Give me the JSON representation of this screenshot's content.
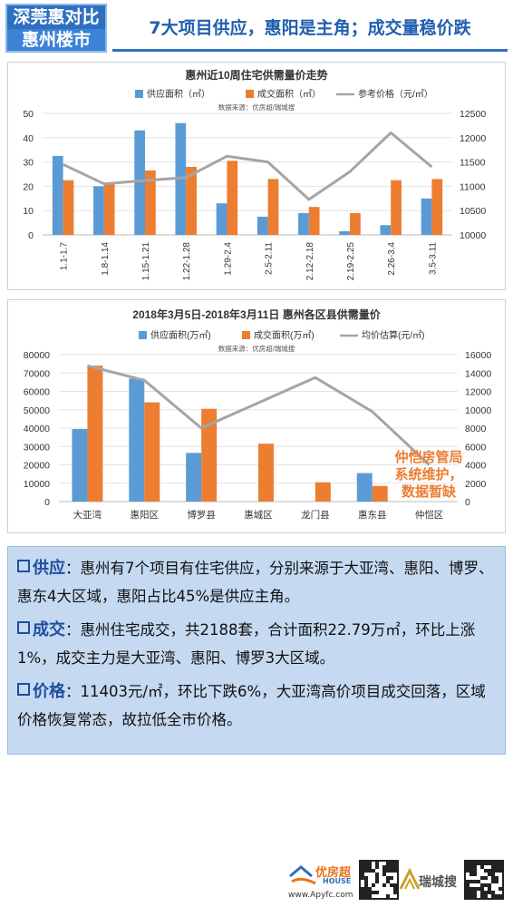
{
  "header": {
    "badge_line1": "深莞惠对比",
    "badge_line2": "惠州楼市",
    "headline": "7大项目供应，惠阳是主角；成交量稳价跌"
  },
  "colors": {
    "blue_bar": "#5B9BD5",
    "orange_bar": "#ED7D31",
    "gray_line": "#A5A5A5",
    "annotation_text": "#ED7D31",
    "accent": "#2E6FC0"
  },
  "chart_data": [
    {
      "type": "bar",
      "title": "惠州近10周住宅供需量价走势",
      "source": "数据来源：优房超/瑞城搜",
      "categories": [
        "1.1-1.7",
        "1.8-1.14",
        "1.15-1.21",
        "1.22-1.28",
        "1.29-2.4",
        "2.5-2.11",
        "2.12-2.18",
        "2.19-2.25",
        "2.26-3.4",
        "3.5-3.11"
      ],
      "series": [
        {
          "name": "供应面积（㎡）",
          "kind": "bar",
          "axis": "left",
          "color": "#5B9BD5",
          "values": [
            32.5,
            20,
            43,
            46,
            13,
            7.5,
            9,
            1.5,
            4,
            15
          ]
        },
        {
          "name": "成交面积（㎡）",
          "kind": "bar",
          "axis": "left",
          "color": "#ED7D31",
          "values": [
            22.5,
            21,
            26.5,
            28,
            30.5,
            23,
            11.5,
            9,
            22.5,
            23
          ]
        },
        {
          "name": "参考价格（元/㎡）",
          "kind": "line",
          "axis": "right",
          "color": "#A5A5A5",
          "values": [
            11450,
            11050,
            11120,
            11180,
            11620,
            11500,
            10730,
            11300,
            12100,
            11400
          ]
        }
      ],
      "ylim_left": [
        0,
        50
      ],
      "yticks_left": [
        "0",
        "10",
        "20",
        "30",
        "40",
        "50"
      ],
      "ylim_right": [
        10000,
        12500
      ],
      "yticks_right": [
        "10000",
        "10500",
        "11000",
        "11500",
        "12000",
        "12500"
      ],
      "legend": "top"
    },
    {
      "type": "bar",
      "title": "2018年3月5日-2018年3月11日 惠州各区县供需量价",
      "source": "数据来源：优房超/瑞城搜",
      "categories": [
        "大亚湾",
        "惠阳区",
        "博罗县",
        "惠城区",
        "龙门县",
        "惠东县",
        "仲恺区"
      ],
      "series": [
        {
          "name": "供应面积(万㎡)",
          "kind": "bar",
          "axis": "left",
          "color": "#5B9BD5",
          "values": [
            39500,
            67000,
            26500,
            0,
            0,
            15500,
            0
          ]
        },
        {
          "name": "成交面积(万㎡)",
          "kind": "bar",
          "axis": "left",
          "color": "#ED7D31",
          "values": [
            74000,
            54000,
            50500,
            31500,
            10500,
            8500,
            0
          ]
        },
        {
          "name": "均价估算(元/㎡)",
          "kind": "line",
          "axis": "right",
          "color": "#A5A5A5",
          "values": [
            14800,
            13200,
            8000,
            null,
            13500,
            9800,
            4000
          ]
        }
      ],
      "ylim_left": [
        0,
        80000
      ],
      "yticks_left": [
        "0",
        "10000",
        "20000",
        "30000",
        "40000",
        "50000",
        "60000",
        "70000",
        "80000"
      ],
      "ylim_right": [
        0,
        16000
      ],
      "yticks_right": [
        "0",
        "2000",
        "4000",
        "6000",
        "8000",
        "10000",
        "12000",
        "14000",
        "16000"
      ],
      "legend": "top",
      "annotation": [
        "仲恺房管局",
        "系统维护，",
        "数据暂缺"
      ]
    }
  ],
  "info": {
    "supply_key": "供应",
    "supply_text": "：惠州有7个项目有住宅供应，分别来源于大亚湾、惠阳、博罗、惠东4大区域，惠阳占比45%是供应主角。",
    "deal_key": "成交",
    "deal_text": "：惠州住宅成交，共2188套，合计面积22.79万㎡，环比上涨1%，成交主力是大亚湾、惠阳、博罗3大区域。",
    "price_key": "价格",
    "price_text": "：11403元/㎡，环比下跌6%，大亚湾高价项目成交回落，区域价格恢复常态，故拉低全市价格。"
  },
  "footer": {
    "logo1_name": "优房超",
    "logo1_sub": "HOUSE",
    "url": "www.Apyfc.com",
    "logo2_name": "瑞城搜"
  }
}
